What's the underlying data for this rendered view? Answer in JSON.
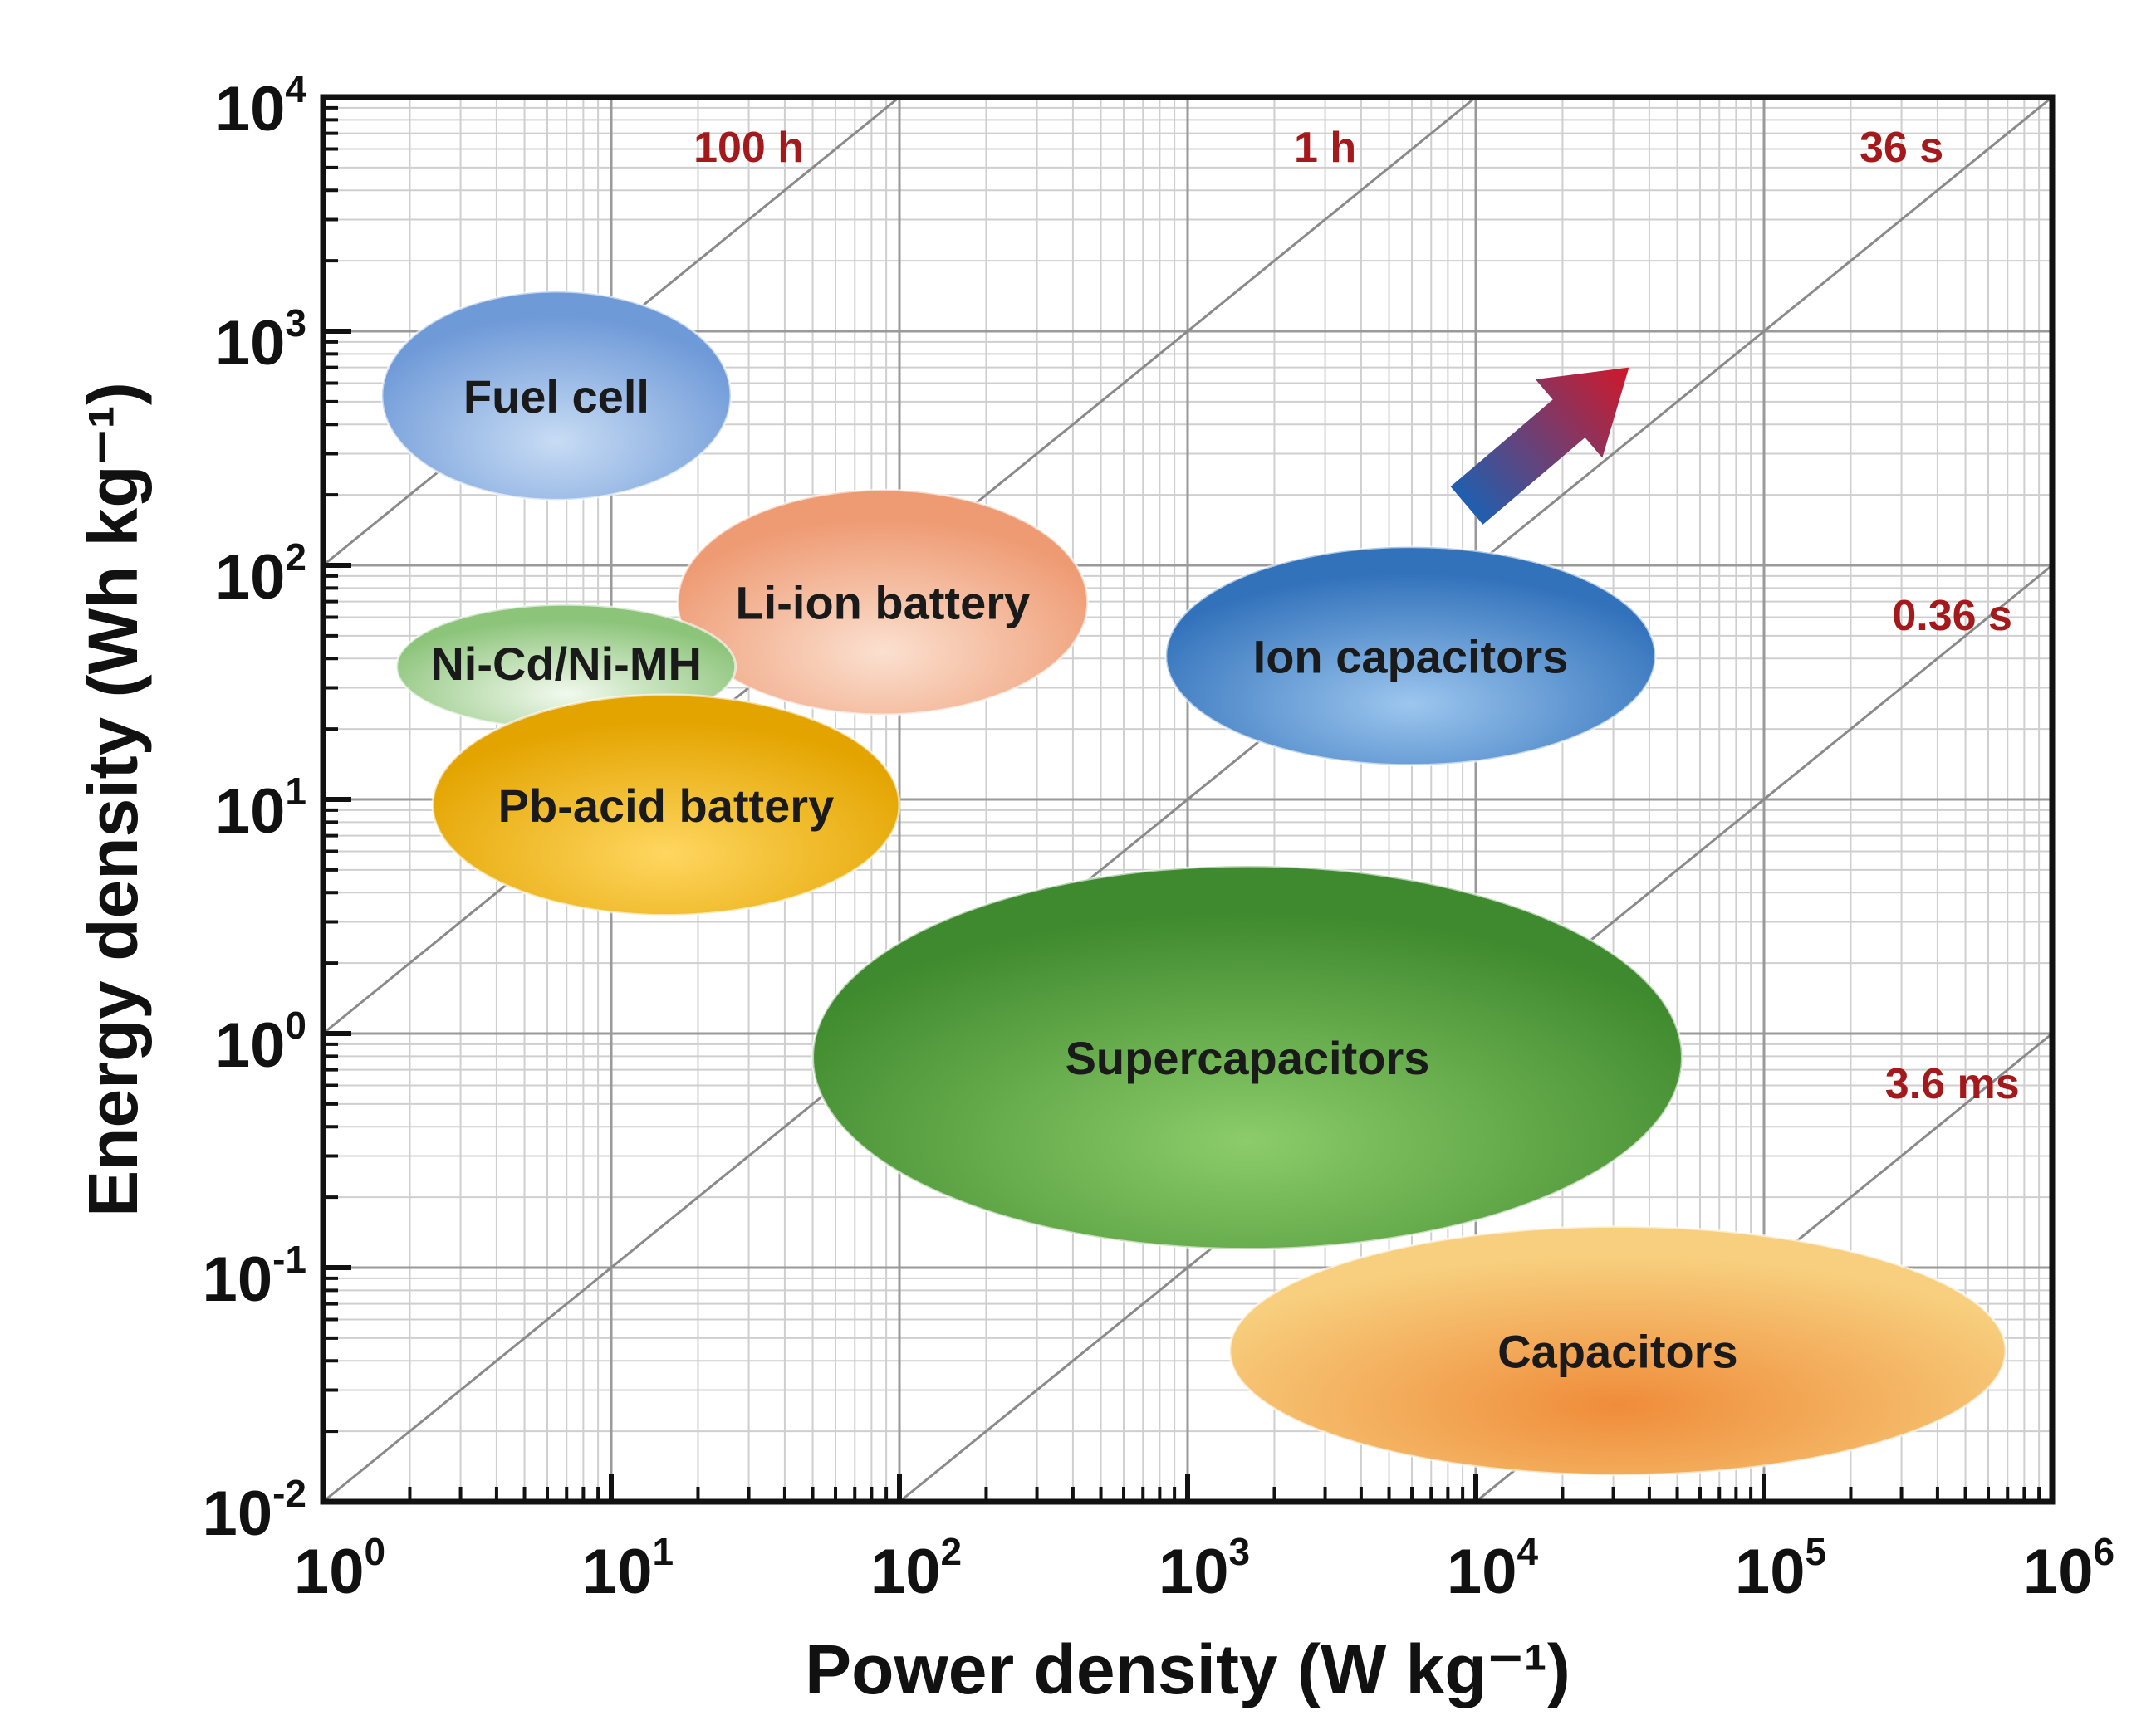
{
  "chart_data": {
    "type": "scatter",
    "subtype": "ragone-plot",
    "xlabel": "Power density (W kg⁻¹)",
    "ylabel": "Energy density (Wh kg⁻¹)",
    "xscale": "log",
    "yscale": "log",
    "xlim": [
      1,
      1000000
    ],
    "ylim": [
      0.01,
      10000
    ],
    "grid": true,
    "x_ticks": [
      {
        "base": "10",
        "exp": "0",
        "value": 1
      },
      {
        "base": "10",
        "exp": "1",
        "value": 10
      },
      {
        "base": "10",
        "exp": "2",
        "value": 100
      },
      {
        "base": "10",
        "exp": "3",
        "value": 1000
      },
      {
        "base": "10",
        "exp": "4",
        "value": 10000
      },
      {
        "base": "10",
        "exp": "5",
        "value": 100000
      },
      {
        "base": "10",
        "exp": "6",
        "value": 1000000
      }
    ],
    "y_ticks": [
      {
        "base": "10",
        "exp": "-2",
        "value": 0.01
      },
      {
        "base": "10",
        "exp": "-1",
        "value": 0.1
      },
      {
        "base": "10",
        "exp": "0",
        "value": 1
      },
      {
        "base": "10",
        "exp": "1",
        "value": 10
      },
      {
        "base": "10",
        "exp": "2",
        "value": 100
      },
      {
        "base": "10",
        "exp": "3",
        "value": 1000
      },
      {
        "base": "10",
        "exp": "4",
        "value": 10000
      }
    ],
    "time_lines": [
      {
        "label": "100 h",
        "hours": 100,
        "label_at": [
          30,
          10000
        ]
      },
      {
        "label": "1 h",
        "hours": 1,
        "label_at": [
          3000,
          10000
        ]
      },
      {
        "label": "36 s",
        "hours": 0.01,
        "label_at": [
          300000,
          10000
        ]
      },
      {
        "label": "0.36 s",
        "hours": 0.0001,
        "label_at": [
          450000,
          100
        ]
      },
      {
        "label": "3.6 ms",
        "hours": 1e-06,
        "label_at": [
          450000,
          1
        ]
      }
    ],
    "regions": [
      {
        "name": "Fuel cell",
        "x_range": [
          1.6,
          26
        ],
        "y_range": [
          190,
          1480
        ],
        "color": "#6f9ad8",
        "highlight": "#c8dcf4"
      },
      {
        "name": "Li-ion battery",
        "x_range": [
          17,
          450
        ],
        "y_range": [
          23,
          210
        ],
        "color": "#ee9a72",
        "highlight": "#fbe0d0"
      },
      {
        "name": "Ni-Cd/Ni-MH",
        "x_range": [
          1.8,
          27
        ],
        "y_range": [
          20,
          68
        ],
        "color": "#8cc47a",
        "highlight": "#f2f9ee"
      },
      {
        "name": "Pb-acid battery",
        "x_range": [
          2.4,
          100
        ],
        "y_range": [
          3.2,
          28
        ],
        "color": "#e3a400",
        "highlight": "#ffd660"
      },
      {
        "name": "Ion capacitors",
        "x_range": [
          840,
          42000
        ],
        "y_range": [
          14,
          120
        ],
        "color": "#3272bb",
        "highlight": "#9cc6ee"
      },
      {
        "name": "Supercapacitors",
        "x_range": [
          50,
          52000
        ],
        "y_range": [
          0.12,
          5.2
        ],
        "color": "#3f8a2e",
        "highlight": "#8ccc6a"
      },
      {
        "name": "Capacitors",
        "x_range": [
          1400,
          690000
        ],
        "y_range": [
          0.013,
          0.15
        ],
        "color": "#f7cf7e",
        "highlight": "#ef8c3a"
      }
    ],
    "arrow": {
      "from": [
        9300,
        180
      ],
      "to": [
        34000,
        700
      ],
      "color_start": "#1f5fb0",
      "color_end": "#d0182a"
    }
  }
}
